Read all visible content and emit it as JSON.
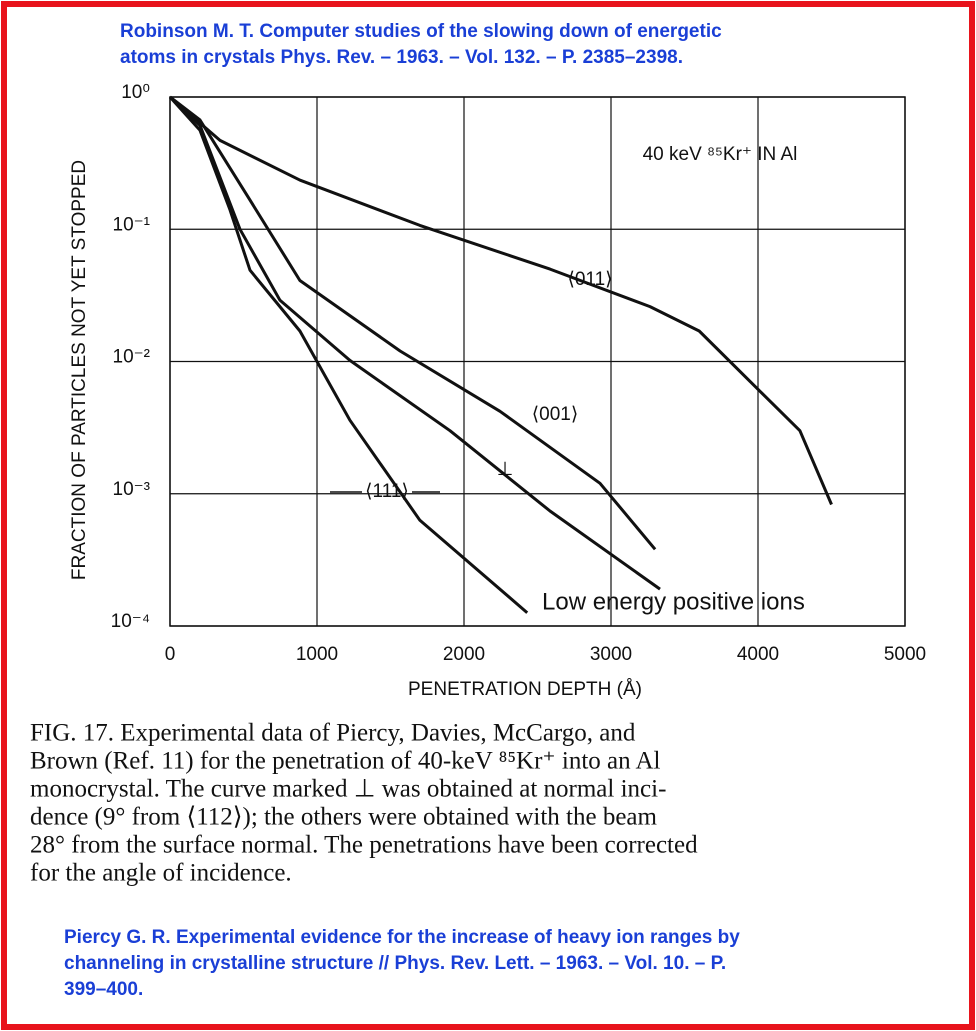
{
  "citation_top": [
    "Robinson M. T. Computer studies of the slowing down of energetic",
    "atoms in crystals Phys. Rev. – 1963. – Vol. 132. – P. 2385–2398."
  ],
  "chart_data": {
    "type": "line",
    "annotation": "40 keV ⁸⁵Kr⁺ IN Al",
    "note": "Low energy positive ions",
    "x_label": "PENETRATION DEPTH (Å)",
    "y_label": "FRACTION OF PARTICLES NOT YET STOPPED",
    "xlim": [
      0,
      5000
    ],
    "xticks": [
      0,
      1000,
      2000,
      3000,
      4000,
      5000
    ],
    "ylim": [
      0.0001,
      1
    ],
    "log_y": true,
    "grid": true,
    "yticks": [
      {
        "value": 1,
        "label": "10⁰"
      },
      {
        "value": 0.1,
        "label": "10⁻¹"
      },
      {
        "value": 0.01,
        "label": "10⁻²"
      },
      {
        "value": 0.001,
        "label": "10⁻³"
      },
      {
        "value": 0.0001,
        "label": "10⁻⁴"
      }
    ],
    "series": [
      {
        "name": "⟨011⟩",
        "color": "#111111",
        "x": [
          0,
          340,
          885,
          1700,
          2585,
          3265,
          3600,
          4010,
          4285,
          4500
        ],
        "values": [
          1,
          0.47,
          0.235,
          0.107,
          0.05,
          0.026,
          0.017,
          0.006,
          0.003,
          0.00083
        ]
      },
      {
        "name": "⟨001⟩",
        "color": "#111111",
        "x": [
          0,
          204,
          544,
          884,
          1565,
          2245,
          2925,
          3300
        ],
        "values": [
          1,
          0.67,
          0.166,
          0.041,
          0.012,
          0.0042,
          0.0012,
          0.00038
        ]
      },
      {
        "name": "⊥",
        "color": "#111111",
        "x": [
          0,
          204,
          476,
          748,
          1224,
          1905,
          2585,
          3333
        ],
        "values": [
          1,
          0.61,
          0.1,
          0.029,
          0.0102,
          0.003,
          0.00074,
          0.00019
        ]
      },
      {
        "name": "⟨111⟩",
        "color": "#111111",
        "x": [
          0,
          204,
          408,
          544,
          884,
          1224,
          1700,
          2430
        ],
        "values": [
          1,
          0.56,
          0.14,
          0.049,
          0.017,
          0.0036,
          0.00063,
          0.000126
        ]
      }
    ]
  },
  "caption": [
    "FIG. 17. Experimental data of Piercy, Davies, McCargo, and",
    "Brown (Ref. 11) for the penetration of 40-keV ⁸⁵Kr⁺ into an Al",
    "monocrystal. The curve marked ⊥ was obtained at normal inci-",
    "dence (9° from ⟨112⟩); the others were obtained with the beam",
    "28° from the surface normal. The penetrations have been corrected",
    "for the angle of incidence."
  ],
  "citation_bottom": [
    "Piercy G. R.  Experimental evidence for the increase of heavy ion ranges by",
    "channeling in crystalline structure  // Phys. Rev. Lett. – 1963. – Vol. 10. – P.",
    "399–400."
  ]
}
